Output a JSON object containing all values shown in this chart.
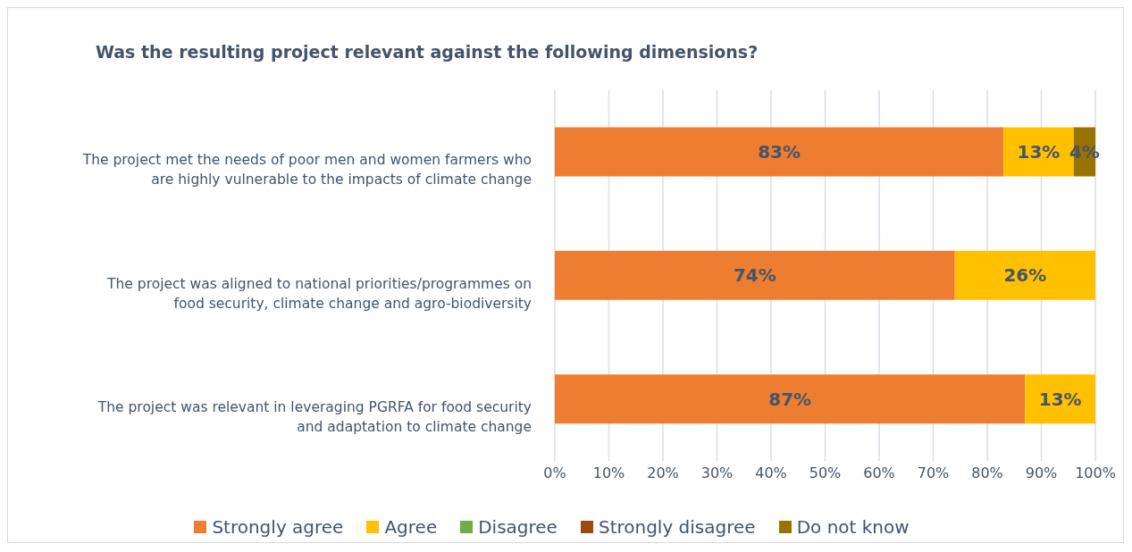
{
  "chart_data": {
    "type": "bar",
    "orientation": "horizontal",
    "stacked": true,
    "title": "Was the resulting project relevant against the following dimensions?",
    "categories": [
      "The project met the needs of poor men and women farmers who are highly vulnerable to the impacts of climate change",
      "The project was aligned to national priorities/programmes on food security, climate change and agro-biodiversity",
      "The project was relevant in leveraging PGRFA for food security and adaptation to climate change"
    ],
    "series": [
      {
        "name": "Strongly agree",
        "color": "#ed7d31",
        "values": [
          83,
          74,
          87
        ],
        "value_labels": [
          "83%",
          "74%",
          "87%"
        ]
      },
      {
        "name": "Agree",
        "color": "#ffc000",
        "values": [
          13,
          26,
          13
        ],
        "value_labels": [
          "13%",
          "26%",
          "13%"
        ]
      },
      {
        "name": "Disagree",
        "color": "#70ad47",
        "values": [
          0,
          0,
          0
        ],
        "value_labels": [
          null,
          null,
          null
        ]
      },
      {
        "name": "Strongly disagree",
        "color": "#9e480e",
        "values": [
          0,
          0,
          0
        ],
        "value_labels": [
          null,
          null,
          null
        ]
      },
      {
        "name": "Do not know",
        "color": "#997300",
        "values": [
          4,
          0,
          0
        ],
        "value_labels": [
          "4%",
          null,
          null
        ]
      }
    ],
    "xlim": [
      0,
      100
    ],
    "xticks": [
      {
        "value": 0,
        "label": "0%"
      },
      {
        "value": 10,
        "label": "10%"
      },
      {
        "value": 20,
        "label": "20%"
      },
      {
        "value": 30,
        "label": "30%"
      },
      {
        "value": 40,
        "label": "40%"
      },
      {
        "value": 50,
        "label": "50%"
      },
      {
        "value": 60,
        "label": "60%"
      },
      {
        "value": 70,
        "label": "70%"
      },
      {
        "value": 80,
        "label": "80%"
      },
      {
        "value": 90,
        "label": "90%"
      },
      {
        "value": 100,
        "label": "100%"
      }
    ],
    "grid": "x",
    "legend": "bottom"
  }
}
